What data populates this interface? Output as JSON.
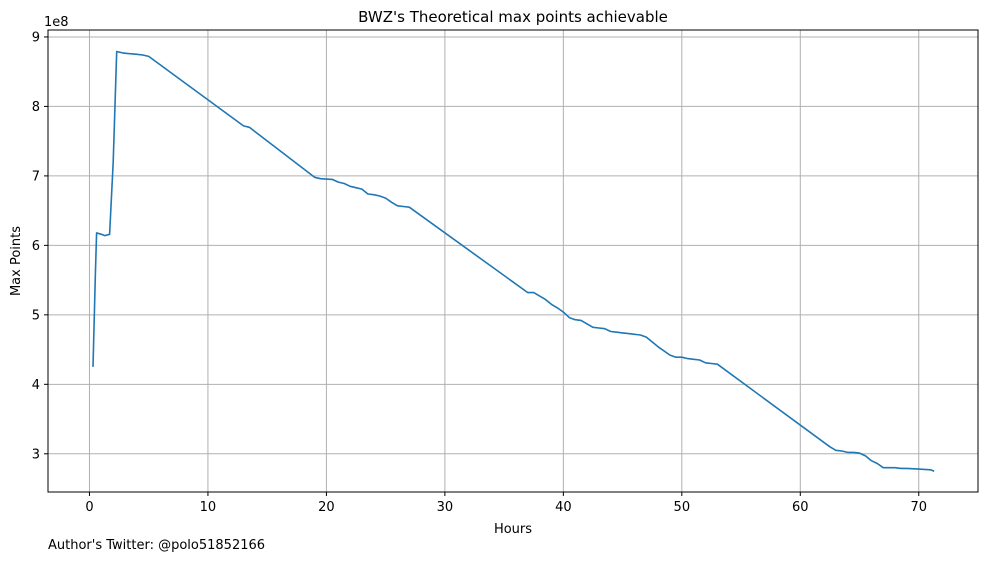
{
  "footer": {
    "note": "Author's Twitter: @polo51852166"
  },
  "chart_data": {
    "type": "line",
    "title": "BWZ's Theoretical max points achievable",
    "xlabel": "Hours",
    "ylabel": "Max Points",
    "y_offset_label": "1e8",
    "xlim": [
      -3.5,
      75
    ],
    "ylim": [
      2.45,
      9.1
    ],
    "y_unit_multiplier": 100000000,
    "xticks": [
      0,
      10,
      20,
      30,
      40,
      50,
      60,
      70
    ],
    "yticks": [
      3,
      4,
      5,
      6,
      7,
      8,
      9
    ],
    "grid": true,
    "line_color": "#1f77b4",
    "series": [
      {
        "x": [
          0.3,
          0.5,
          0.6,
          1.0,
          1.3,
          1.7,
          2.0,
          2.3,
          2.8,
          3.3,
          4.0,
          4.5,
          5.0,
          13.0,
          13.5,
          19.0,
          19.5,
          20.5,
          21.0,
          21.5,
          22.0,
          22.5,
          23.0,
          23.5,
          24.0,
          24.5,
          25.0,
          25.5,
          26.0,
          26.5,
          27.0,
          37.0,
          37.5,
          38.0,
          38.5,
          39.0,
          39.5,
          40.0,
          40.5,
          41.0,
          41.5,
          42.0,
          42.5,
          43.0,
          43.5,
          44.0,
          44.5,
          45.0,
          45.5,
          46.0,
          46.5,
          47.0,
          48.0,
          49.0,
          49.5,
          50.0,
          50.5,
          51.0,
          51.5,
          52.0,
          52.5,
          53.0,
          62.5,
          63.0,
          63.5,
          64.0,
          64.5,
          65.0,
          65.5,
          66.0,
          66.5,
          67.0,
          68.0,
          68.5,
          69.0,
          70.0,
          71.0,
          71.3
        ],
        "y": [
          4.25,
          5.6,
          6.18,
          6.16,
          6.14,
          6.16,
          7.2,
          8.79,
          8.77,
          8.76,
          8.75,
          8.74,
          8.72,
          7.72,
          7.7,
          6.98,
          6.96,
          6.95,
          6.91,
          6.89,
          6.85,
          6.83,
          6.81,
          6.74,
          6.73,
          6.71,
          6.68,
          6.62,
          6.57,
          6.56,
          6.55,
          5.32,
          5.32,
          5.27,
          5.22,
          5.15,
          5.1,
          5.04,
          4.96,
          4.93,
          4.92,
          4.87,
          4.82,
          4.81,
          4.8,
          4.76,
          4.75,
          4.74,
          4.73,
          4.72,
          4.71,
          4.68,
          4.54,
          4.42,
          4.39,
          4.39,
          4.37,
          4.36,
          4.35,
          4.31,
          4.3,
          4.29,
          3.1,
          3.05,
          3.04,
          3.02,
          3.02,
          3.01,
          2.97,
          2.9,
          2.86,
          2.8,
          2.8,
          2.79,
          2.79,
          2.78,
          2.77,
          2.75
        ]
      }
    ]
  }
}
